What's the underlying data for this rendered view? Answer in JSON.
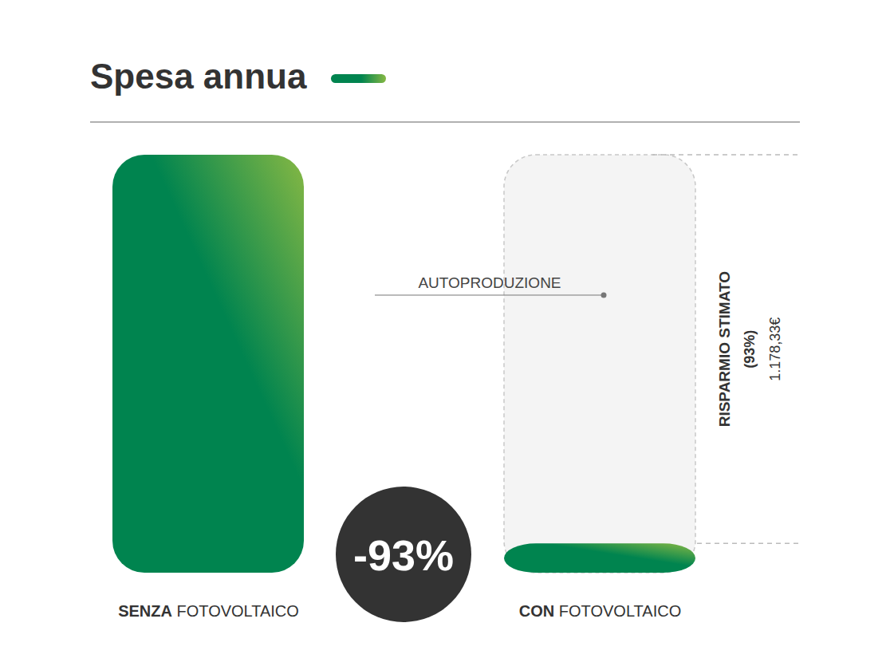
{
  "chart_data": {
    "type": "bar",
    "title": "Spesa annua",
    "categories": [
      "SENZA FOTOVOLTAICO",
      "CON FOTOVOLTAICO"
    ],
    "values": [
      1267.02,
      88.69
    ],
    "color": "#00844f",
    "ylim": [
      0,
      1267.02
    ],
    "yticks": [],
    "tick_labels": "x",
    "annotations": {
      "badge": "-93%",
      "segment": "AUTOPRODUZIONE",
      "savings_title": "RISPARMIO STIMATO",
      "savings_percent": "(93%)",
      "savings_amount": "1.178,33€"
    }
  }
}
